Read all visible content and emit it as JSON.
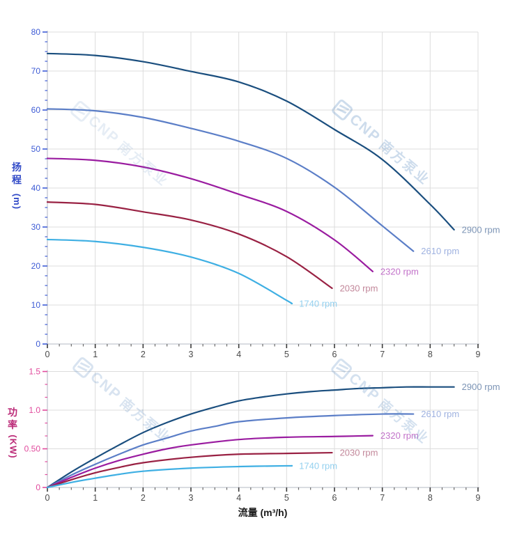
{
  "watermark": {
    "brand": "CNP",
    "text_cn": "南方泵业",
    "color": "#5e8fc2"
  },
  "chart_data": [
    {
      "type": "line",
      "title": "",
      "xlabel": "流量 (m³/h)",
      "ylabel": "扬程 (m)",
      "ylabel_stack": [
        "扬",
        "程"
      ],
      "ylabel_unit": "(m)",
      "xlim": [
        0,
        9
      ],
      "ylim": [
        0,
        80
      ],
      "x_ticks": [
        "0",
        "1",
        "2",
        "3",
        "4",
        "5",
        "6",
        "7",
        "8",
        "9"
      ],
      "x_minor_subdiv": 4,
      "y_ticks": [
        {
          "v": 0,
          "label": "0"
        },
        {
          "v": 10,
          "label": "10"
        },
        {
          "v": 20,
          "label": "20"
        },
        {
          "v": 30,
          "label": "30"
        },
        {
          "v": 40,
          "label": "40"
        },
        {
          "v": 50,
          "label": "50"
        },
        {
          "v": 60,
          "label": "60"
        },
        {
          "v": 70,
          "label": "70"
        },
        {
          "v": 80,
          "label": "80"
        }
      ],
      "y_minor_subdiv": 4,
      "grid": true,
      "legend_position": "end-of-curve",
      "colors": {
        "grid": "#dcdcdc",
        "spine": "#c2c6cf",
        "x_tick": "#4a4a4a",
        "y_tick": "#3d5bd5",
        "y_label": "#3049c7",
        "x_label": "#1a1a1a"
      },
      "series": [
        {
          "name": "2900 rpm",
          "color": "#1a4e7e",
          "label_color": "#7c94b5",
          "points": [
            [
              0,
              74.5
            ],
            [
              1,
              74.0
            ],
            [
              2,
              72.4
            ],
            [
              3,
              69.9
            ],
            [
              4,
              67.2
            ],
            [
              5,
              62.3
            ],
            [
              6,
              55.0
            ],
            [
              7,
              47.3
            ],
            [
              8,
              35.8
            ],
            [
              8.5,
              29.3
            ]
          ]
        },
        {
          "name": "2610 rpm",
          "color": "#5b7ec7",
          "label_color": "#9fb2e0",
          "points": [
            [
              0,
              60.3
            ],
            [
              1,
              59.8
            ],
            [
              2,
              58.1
            ],
            [
              3,
              55.3
            ],
            [
              4,
              52.0
            ],
            [
              5,
              47.6
            ],
            [
              6,
              40.2
            ],
            [
              7,
              30.3
            ],
            [
              7.65,
              23.8
            ]
          ]
        },
        {
          "name": "2320 rpm",
          "color": "#9a1ca0",
          "label_color": "#c272c9",
          "points": [
            [
              0,
              47.6
            ],
            [
              1,
              47.1
            ],
            [
              2,
              45.4
            ],
            [
              3,
              42.4
            ],
            [
              4,
              38.4
            ],
            [
              5,
              34.0
            ],
            [
              6,
              26.7
            ],
            [
              6.8,
              18.6
            ]
          ]
        },
        {
          "name": "2030 rpm",
          "color": "#992143",
          "label_color": "#c2879a",
          "points": [
            [
              0,
              36.4
            ],
            [
              1,
              35.8
            ],
            [
              2,
              33.9
            ],
            [
              3,
              31.8
            ],
            [
              4,
              28.2
            ],
            [
              5,
              22.4
            ],
            [
              5.95,
              14.3
            ]
          ]
        },
        {
          "name": "1740 rpm",
          "color": "#3eafe3",
          "label_color": "#93d0ef",
          "points": [
            [
              0,
              26.8
            ],
            [
              1,
              26.3
            ],
            [
              2,
              24.8
            ],
            [
              3,
              22.3
            ],
            [
              4,
              18.1
            ],
            [
              5,
              11.2
            ],
            [
              5.1,
              10.4
            ]
          ]
        }
      ]
    },
    {
      "type": "line",
      "title": "",
      "xlabel": "流量 (m³/h)",
      "ylabel": "功率 (KW)",
      "ylabel_stack": [
        "功",
        "率"
      ],
      "ylabel_unit": "(KW)",
      "xlim": [
        0,
        9
      ],
      "ylim": [
        0,
        1.5
      ],
      "x_ticks": [
        "0",
        "1",
        "2",
        "3",
        "4",
        "5",
        "6",
        "7",
        "8",
        "9"
      ],
      "x_minor_subdiv": 4,
      "y_ticks": [
        {
          "v": 0,
          "label": "0"
        },
        {
          "v": 0.5,
          "label": "0.50"
        },
        {
          "v": 1.0,
          "label": "1.0"
        },
        {
          "v": 1.5,
          "label": "1.5"
        }
      ],
      "y_minor_subdiv": 3,
      "grid": true,
      "legend_position": "end-of-curve",
      "colors": {
        "grid": "#dcdcdc",
        "spine": "#c2c6cf",
        "x_tick": "#4a4a4a",
        "y_tick": "#e14b9d",
        "y_label": "#bb2977",
        "x_label": "#1a1a1a"
      },
      "series": [
        {
          "name": "2900 rpm",
          "color": "#1a4e7e",
          "label_color": "#7c94b5",
          "points": [
            [
              0,
              0
            ],
            [
              0.5,
              0.2
            ],
            [
              1,
              0.38
            ],
            [
              1.5,
              0.55
            ],
            [
              2,
              0.71
            ],
            [
              2.5,
              0.84
            ],
            [
              3,
              0.95
            ],
            [
              3.5,
              1.04
            ],
            [
              4,
              1.12
            ],
            [
              4.5,
              1.17
            ],
            [
              5,
              1.21
            ],
            [
              5.5,
              1.24
            ],
            [
              6,
              1.26
            ],
            [
              6.5,
              1.28
            ],
            [
              7,
              1.29
            ],
            [
              7.5,
              1.3
            ],
            [
              8,
              1.3
            ],
            [
              8.5,
              1.3
            ]
          ]
        },
        {
          "name": "2610 rpm",
          "color": "#5b7ec7",
          "label_color": "#9fb2e0",
          "points": [
            [
              0,
              0
            ],
            [
              0.5,
              0.16
            ],
            [
              1,
              0.3
            ],
            [
              1.5,
              0.43
            ],
            [
              2,
              0.55
            ],
            [
              2.5,
              0.64
            ],
            [
              3,
              0.73
            ],
            [
              3.5,
              0.79
            ],
            [
              4,
              0.85
            ],
            [
              5,
              0.9
            ],
            [
              6,
              0.93
            ],
            [
              7,
              0.95
            ],
            [
              7.65,
              0.95
            ]
          ]
        },
        {
          "name": "2320 rpm",
          "color": "#9a1ca0",
          "label_color": "#c272c9",
          "points": [
            [
              0,
              0
            ],
            [
              0.5,
              0.13
            ],
            [
              1,
              0.25
            ],
            [
              1.5,
              0.35
            ],
            [
              2,
              0.43
            ],
            [
              2.5,
              0.5
            ],
            [
              3,
              0.55
            ],
            [
              4,
              0.62
            ],
            [
              5,
              0.65
            ],
            [
              6,
              0.66
            ],
            [
              6.8,
              0.67
            ]
          ]
        },
        {
          "name": "2030 rpm",
          "color": "#992143",
          "label_color": "#c2879a",
          "points": [
            [
              0,
              0
            ],
            [
              0.5,
              0.1
            ],
            [
              1,
              0.19
            ],
            [
              1.5,
              0.26
            ],
            [
              2,
              0.32
            ],
            [
              3,
              0.39
            ],
            [
              4,
              0.43
            ],
            [
              5,
              0.44
            ],
            [
              5.95,
              0.45
            ]
          ]
        },
        {
          "name": "1740 rpm",
          "color": "#3eafe3",
          "label_color": "#93d0ef",
          "points": [
            [
              0,
              0
            ],
            [
              0.5,
              0.065
            ],
            [
              1,
              0.12
            ],
            [
              1.5,
              0.17
            ],
            [
              2,
              0.21
            ],
            [
              3,
              0.25
            ],
            [
              4,
              0.27
            ],
            [
              5,
              0.28
            ],
            [
              5.1,
              0.28
            ]
          ]
        }
      ]
    }
  ]
}
